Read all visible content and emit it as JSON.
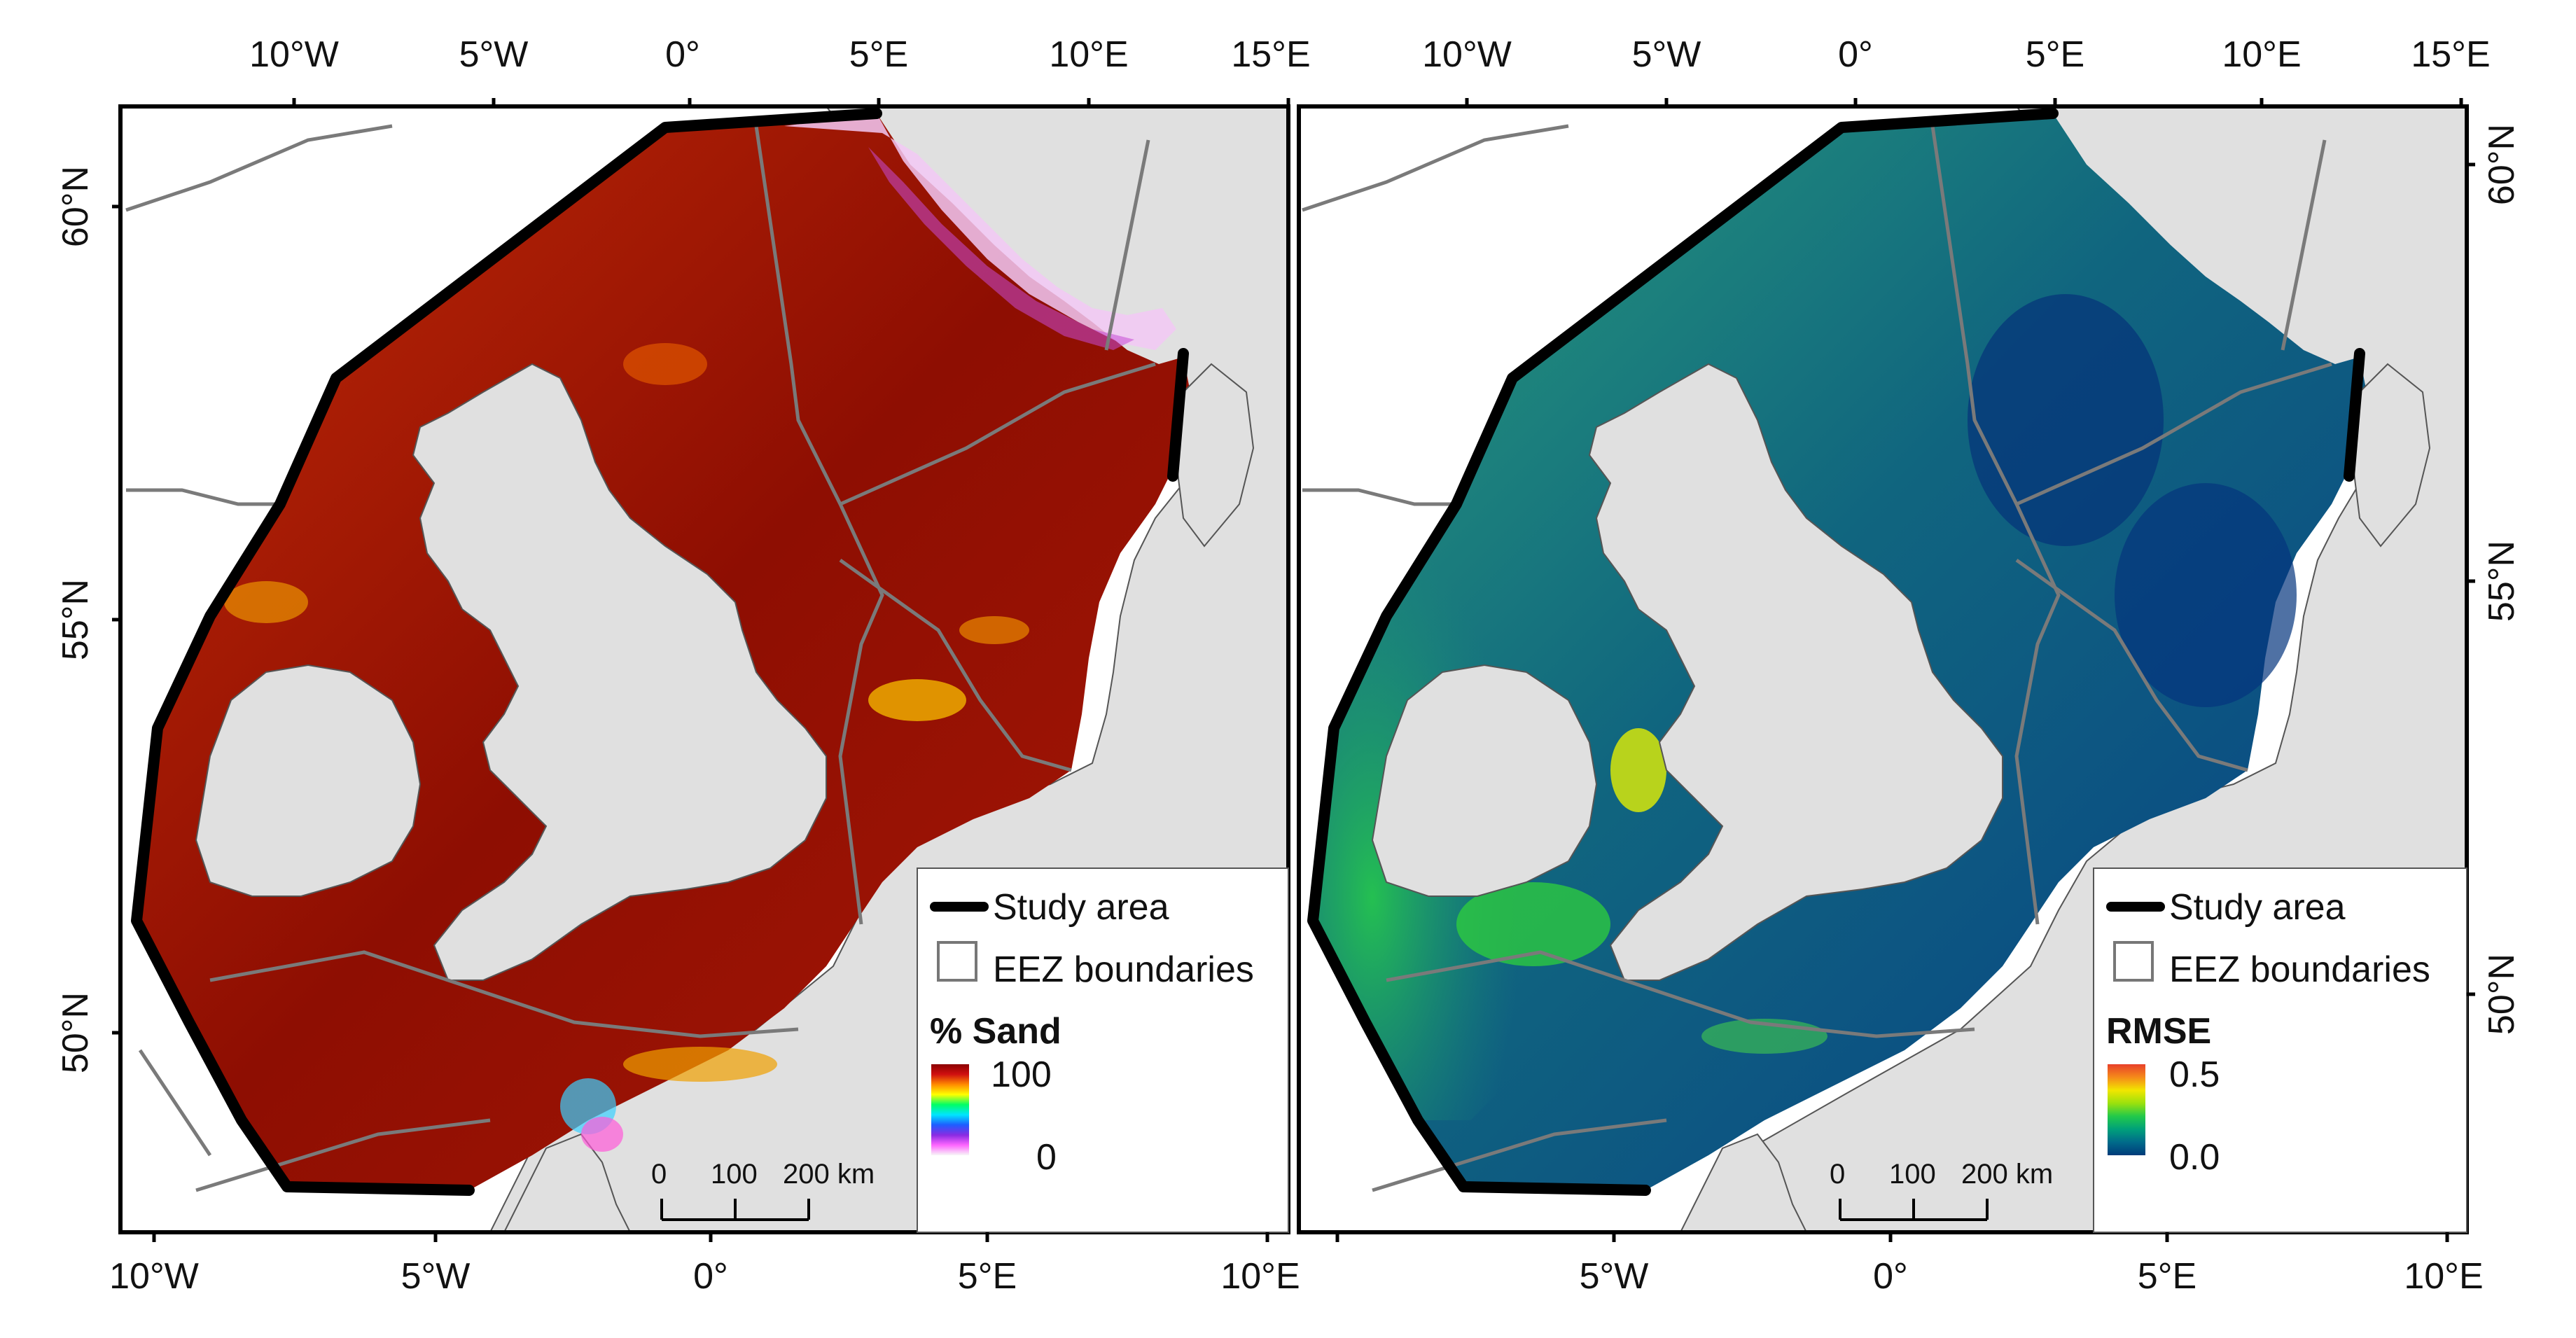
{
  "panels": [
    {
      "id": "sand",
      "top_lon_labels": [
        "10°W",
        "5°W",
        "0°",
        "5°E",
        "10°E",
        "15°E"
      ],
      "bottom_lon_labels": [
        "10°W",
        "5°W",
        "0°",
        "5°E",
        "10°E"
      ],
      "lat_labels": [
        "60°N",
        "55°N",
        "50°N"
      ],
      "legend": {
        "study_area": "Study area",
        "eez": "EEZ boundaries",
        "title": "% Sand",
        "max": "100",
        "min": "0",
        "ramp_colors": [
          "#f7f7f7",
          "#ff66ff",
          "#8a2be2",
          "#1f5cff",
          "#00e5ff",
          "#00ff66",
          "#ffff00",
          "#ff8a00",
          "#d01010",
          "#8b0000"
        ]
      },
      "scalebar": {
        "ticks": [
          "0",
          "100",
          "200 km"
        ]
      }
    },
    {
      "id": "rmse",
      "top_lon_labels": [
        "10°W",
        "5°W",
        "0°",
        "5°E",
        "10°E",
        "15°E"
      ],
      "bottom_lon_labels": [
        "5°W",
        "0°",
        "5°E",
        "10°E"
      ],
      "lat_labels": [
        "60°N",
        "55°N",
        "50°N"
      ],
      "legend": {
        "study_area": "Study area",
        "eez": "EEZ boundaries",
        "title": "RMSE",
        "max": "0.5",
        "min": "0.0",
        "ramp_colors": [
          "#003b7a",
          "#006a8a",
          "#00a07a",
          "#22c94a",
          "#9be10d",
          "#f2e600",
          "#f58a1a",
          "#e8402a"
        ]
      },
      "scalebar": {
        "ticks": [
          "0",
          "100",
          "200 km"
        ]
      }
    }
  ],
  "colors": {
    "land": "#e0e0e0",
    "outside": "#ffffff",
    "study_outline": "#000000",
    "eez_line": "#7a7a7a",
    "sand_sea": "#9a1204",
    "rmse_sea": "#0b4f8a"
  }
}
